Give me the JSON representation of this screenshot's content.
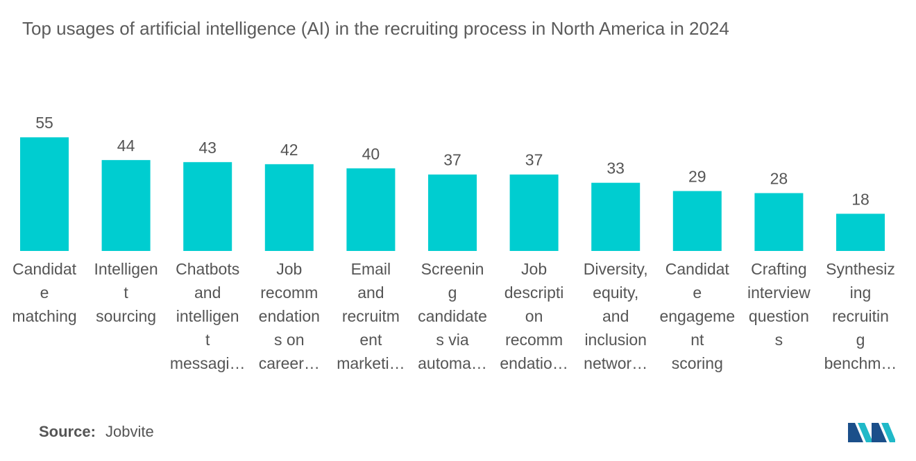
{
  "title": "Top usages of artificial intelligence (AI) in the recruiting process in North America in 2024",
  "source_label": "Source:",
  "source_value": "Jobvite",
  "colors": {
    "bar": "#00cdd0",
    "text": "#555555",
    "logo_dark": "#1b4f8a",
    "logo_light": "#20b9c8"
  },
  "chart_data": {
    "type": "bar",
    "title": "Top usages of artificial intelligence (AI) in the recruiting process in North America in 2024",
    "xlabel": "",
    "ylabel": "",
    "ylim": [
      0,
      60
    ],
    "grid": false,
    "categories": [
      "Candidate matching",
      "Intelligent sourcing",
      "Chatbots and intelligent messaging",
      "Job recommendations on careers sites",
      "Email and recruitment marketing",
      "Screening candidates via automation",
      "Job description on recommendations",
      "Diversity, equity, and inclusion networking",
      "Candidate engagement scoring",
      "Crafting interview questions",
      "Synthesizing recruiting benchmarks"
    ],
    "category_labels_shown": [
      [
        "Candidat",
        "e",
        "matching"
      ],
      [
        "Intelligen",
        "t",
        "sourcing"
      ],
      [
        "Chatbots",
        "and",
        "intelligen",
        "t",
        "messagi…"
      ],
      [
        "Job",
        "recomm",
        "endation",
        "s on",
        "career…"
      ],
      [
        "Email",
        "and",
        "recruitm",
        "ent",
        "marketi…"
      ],
      [
        "Screenin",
        "g",
        "candidate",
        "s via",
        "automa…"
      ],
      [
        "Job",
        "descripti",
        "on",
        "recomm",
        "endatio…"
      ],
      [
        "Diversity,",
        "equity,",
        "and",
        "inclusion",
        "networ…"
      ],
      [
        "Candidat",
        "e",
        "engageme",
        "nt",
        "scoring"
      ],
      [
        "Crafting",
        "interview",
        "question",
        "s"
      ],
      [
        "Synthesiz",
        "ing",
        "recruitin",
        "g",
        "benchm…"
      ]
    ],
    "values": [
      55,
      44,
      43,
      42,
      40,
      37,
      37,
      33,
      29,
      28,
      18
    ]
  }
}
